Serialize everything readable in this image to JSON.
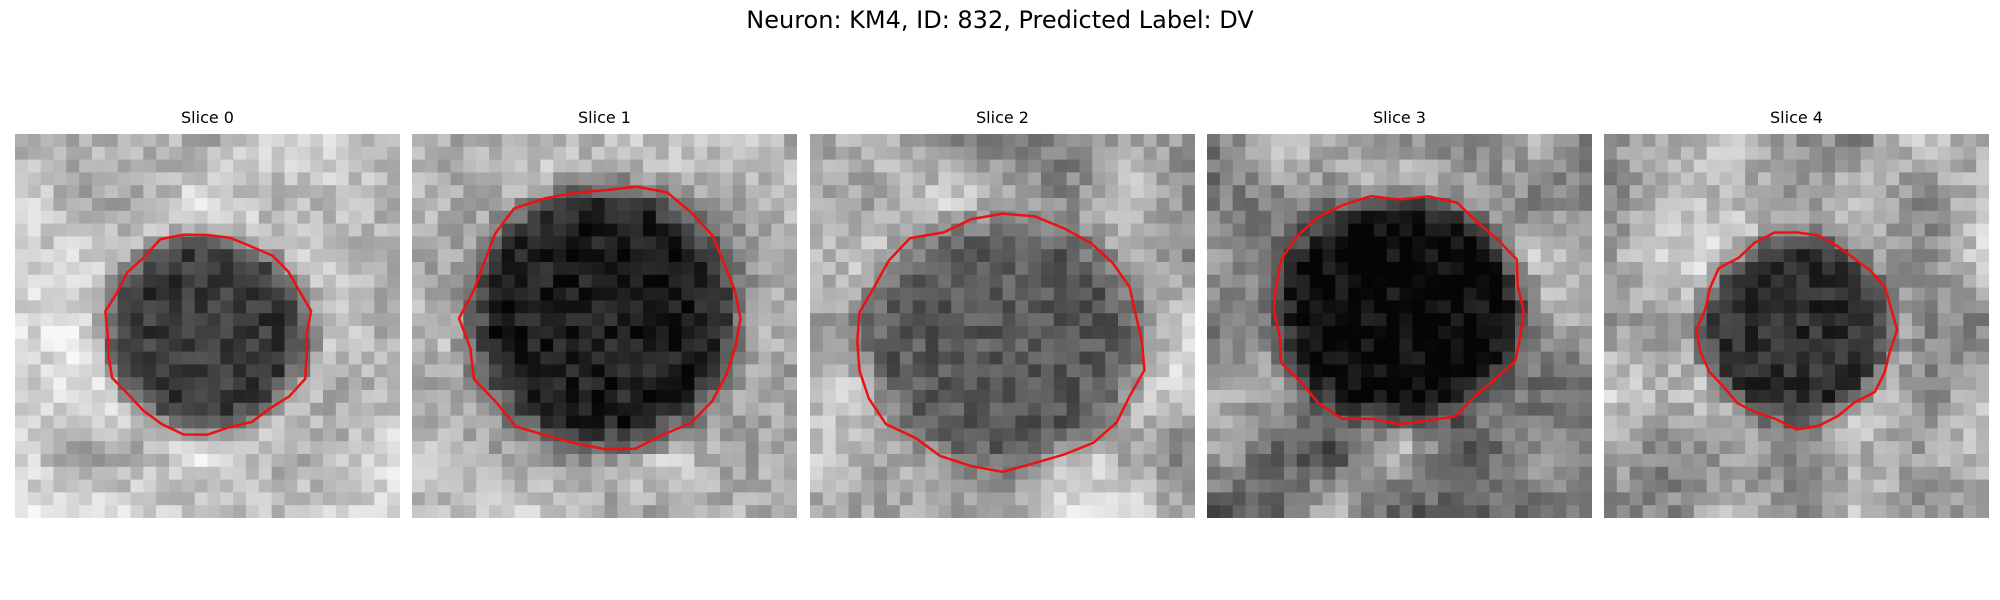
{
  "figure": {
    "title": "Neuron: KM4, ID: 832, Predicted Label: DV"
  },
  "panels": [
    {
      "title": "Slice 0",
      "seed": 11,
      "base": 0.78,
      "inner": 0.22,
      "center": [
        0.5,
        0.52
      ],
      "radius": [
        0.27,
        0.26
      ],
      "contrast": 0.16
    },
    {
      "title": "Slice 1",
      "seed": 23,
      "base": 0.72,
      "inner": 0.12,
      "center": [
        0.5,
        0.48
      ],
      "radius": [
        0.36,
        0.35
      ],
      "contrast": 0.14
    },
    {
      "title": "Slice 2",
      "seed": 37,
      "base": 0.7,
      "inner": 0.35,
      "center": [
        0.5,
        0.54
      ],
      "radius": [
        0.37,
        0.33
      ],
      "contrast": 0.22
    },
    {
      "title": "Slice 3",
      "seed": 51,
      "base": 0.55,
      "inner": 0.04,
      "center": [
        0.5,
        0.46
      ],
      "radius": [
        0.33,
        0.3
      ],
      "contrast": 0.3
    },
    {
      "title": "Slice 4",
      "seed": 67,
      "base": 0.72,
      "inner": 0.18,
      "center": [
        0.5,
        0.51
      ],
      "radius": [
        0.25,
        0.25
      ],
      "contrast": 0.22
    }
  ],
  "colors": {
    "contour": "#ee1111"
  }
}
